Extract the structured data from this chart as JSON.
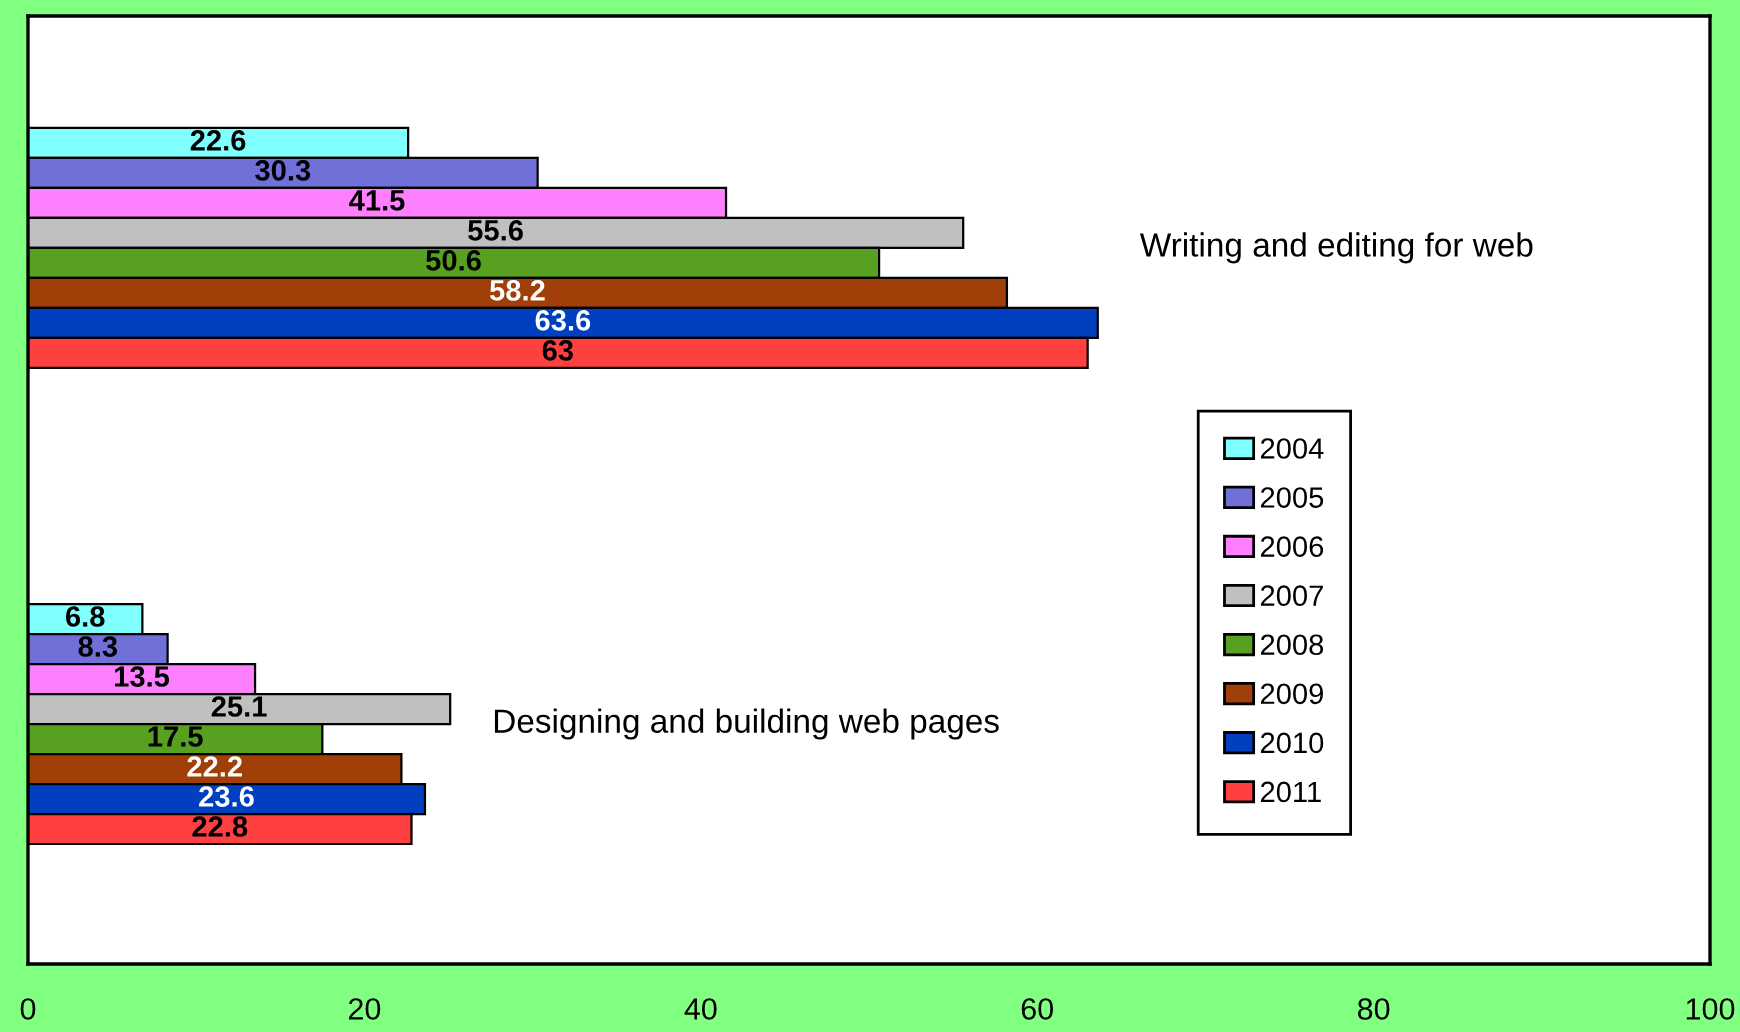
{
  "chart_data": {
    "type": "bar",
    "orientation": "horizontal",
    "categories": [
      "Writing and editing for web",
      "Designing and building web pages"
    ],
    "series": [
      {
        "name": "2004",
        "color": "#80ffff",
        "values": [
          22.6,
          6.8
        ]
      },
      {
        "name": "2005",
        "color": "#7070d8",
        "values": [
          30.3,
          8.3
        ]
      },
      {
        "name": "2006",
        "color": "#ff80ff",
        "values": [
          41.5,
          13.5
        ]
      },
      {
        "name": "2007",
        "color": "#c0c0c0",
        "values": [
          55.6,
          25.1
        ]
      },
      {
        "name": "2008",
        "color": "#58a020",
        "values": [
          50.6,
          17.5
        ]
      },
      {
        "name": "2009",
        "color": "#a04008",
        "values": [
          58.2,
          22.2
        ]
      },
      {
        "name": "2010",
        "color": "#0040c0",
        "values": [
          63.6,
          23.6
        ]
      },
      {
        "name": "2011",
        "color": "#ff4040",
        "values": [
          63,
          22.8
        ]
      }
    ],
    "xlim": [
      0,
      100
    ],
    "xticks": [
      0,
      20,
      40,
      60,
      80,
      100
    ],
    "tick_labels": "x",
    "data_labels": true,
    "grid": false,
    "legend": "right"
  }
}
